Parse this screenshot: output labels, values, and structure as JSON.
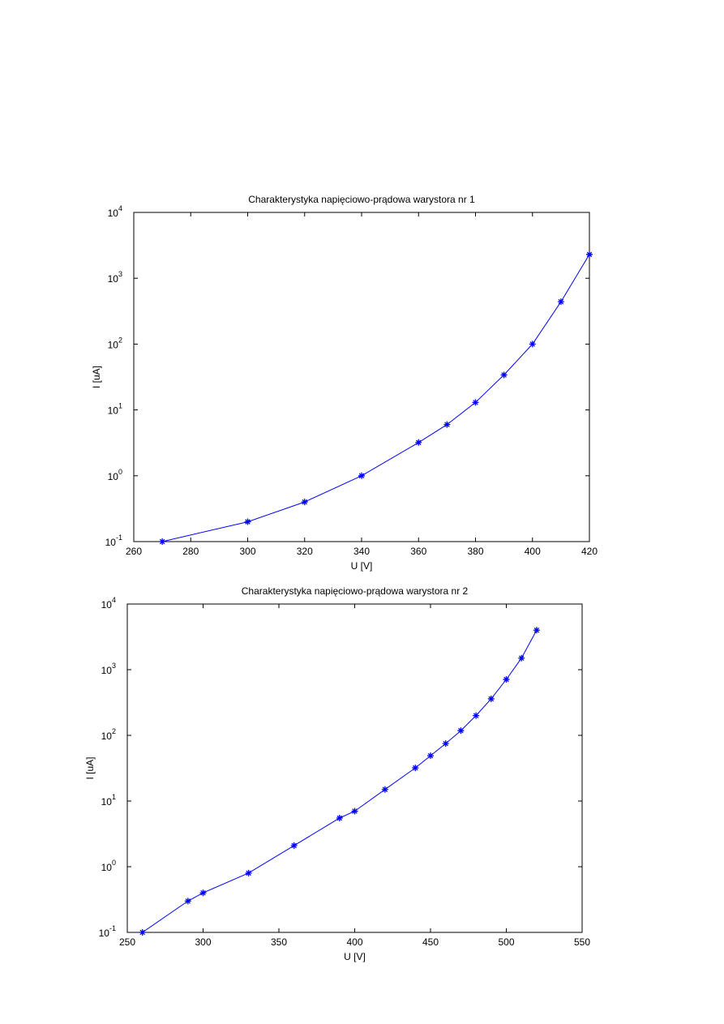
{
  "chart_data": [
    {
      "type": "line",
      "title": "Charakterystyka napięciowo-prądowa warystora nr 1",
      "x_label": "U [V]",
      "y_label": "I [uA]",
      "y_scale": "log",
      "xlim": [
        260,
        420
      ],
      "xticks": [
        260,
        280,
        300,
        320,
        340,
        360,
        380,
        400,
        420
      ],
      "ylim": [
        0.1,
        10000
      ],
      "yticks": [
        {
          "value": 0.1,
          "label": "10",
          "exponent": "-1"
        },
        {
          "value": 1,
          "label": "10",
          "exponent": "0"
        },
        {
          "value": 10,
          "label": "10",
          "exponent": "1"
        },
        {
          "value": 100,
          "label": "10",
          "exponent": "2"
        },
        {
          "value": 1000,
          "label": "10",
          "exponent": "3"
        },
        {
          "value": 10000,
          "label": "10",
          "exponent": "4"
        }
      ],
      "series": [
        {
          "color": "#0000ff",
          "x": [
            270,
            300,
            320,
            340,
            360,
            370,
            380,
            390,
            400,
            410,
            420
          ],
          "values": [
            0.1,
            0.2,
            0.4,
            1.0,
            3.2,
            6,
            13,
            34,
            100,
            440,
            2300
          ]
        }
      ]
    },
    {
      "type": "line",
      "title": "Charakterystyka napięciowo-prądowa warystora nr 2",
      "x_label": "U [V]",
      "y_label": "I [uA]",
      "y_scale": "log",
      "xlim": [
        250,
        550
      ],
      "xticks": [
        250,
        300,
        350,
        400,
        450,
        500,
        550
      ],
      "ylim": [
        0.1,
        10000
      ],
      "yticks": [
        {
          "value": 0.1,
          "label": "10",
          "exponent": "-1"
        },
        {
          "value": 1,
          "label": "10",
          "exponent": "0"
        },
        {
          "value": 10,
          "label": "10",
          "exponent": "1"
        },
        {
          "value": 100,
          "label": "10",
          "exponent": "2"
        },
        {
          "value": 1000,
          "label": "10",
          "exponent": "3"
        },
        {
          "value": 10000,
          "label": "10",
          "exponent": "4"
        }
      ],
      "series": [
        {
          "color": "#0000ff",
          "x": [
            260,
            290,
            300,
            330,
            360,
            390,
            400,
            420,
            440,
            450,
            460,
            470,
            480,
            490,
            500,
            510,
            520
          ],
          "values": [
            0.1,
            0.3,
            0.4,
            0.8,
            2.1,
            5.5,
            7,
            15,
            32,
            49,
            75,
            118,
            200,
            360,
            710,
            1500,
            4000
          ]
        }
      ]
    }
  ]
}
